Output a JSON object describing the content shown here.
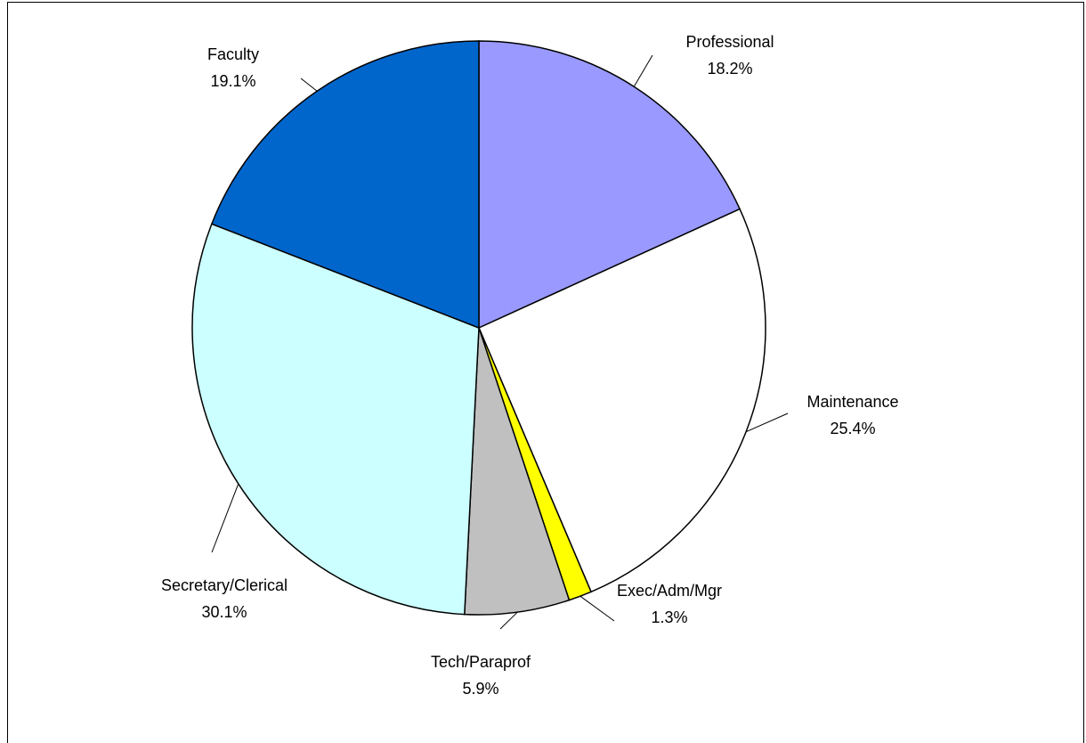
{
  "chart_data": {
    "type": "pie",
    "categories": [
      "Professional",
      "Maintenance",
      "Exec/Adm/Mgr",
      "Tech/Paraprof",
      "Secretary/Clerical",
      "Faculty"
    ],
    "values": [
      18.2,
      25.4,
      1.3,
      5.9,
      30.1,
      19.1
    ],
    "value_labels": [
      "18.2%",
      "25.4%",
      "1.3%",
      "5.9%",
      "30.1%",
      "19.1%"
    ],
    "colors": [
      "#9999ff",
      "#ffffff",
      "#ffff00",
      "#c0c0c0",
      "#ccffff",
      "#0066cc"
    ]
  }
}
